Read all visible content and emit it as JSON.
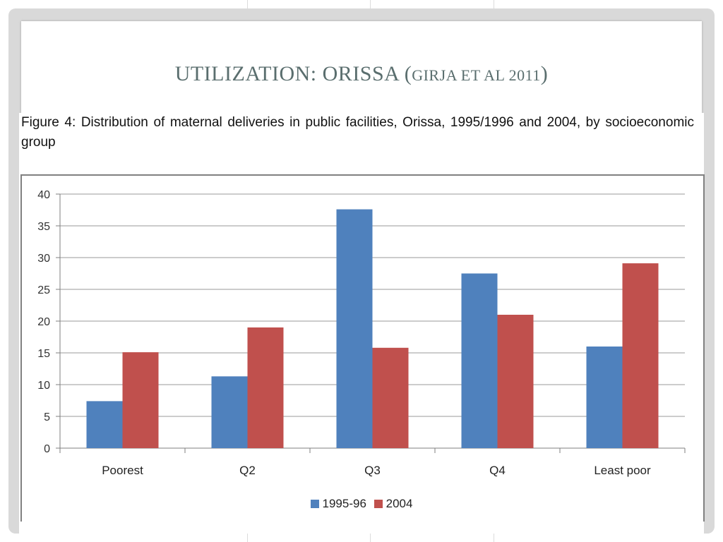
{
  "slide": {
    "title_main": "UTILIZATION: ORISSA (",
    "title_small": "GIRJA ET AL 2011",
    "title_end": ")"
  },
  "caption": "Figure 4: Distribution of maternal deliveries in public facilities, Orissa, 1995/1996 and 2004, by socioeconomic group",
  "colors": {
    "series_1": "#4f81bd",
    "series_2": "#c0504d",
    "grid": "#9a9a9a"
  },
  "chart_data": {
    "type": "bar",
    "categories": [
      "Poorest",
      "Q2",
      "Q3",
      "Q4",
      "Least poor"
    ],
    "series": [
      {
        "name": "1995-96",
        "values": [
          7.4,
          11.3,
          37.6,
          27.5,
          16.0
        ]
      },
      {
        "name": "2004",
        "values": [
          15.1,
          19.0,
          15.8,
          21.0,
          29.1
        ]
      }
    ],
    "ylim": [
      0,
      40
    ],
    "yticks": [
      0,
      5,
      10,
      15,
      20,
      25,
      30,
      35,
      40
    ],
    "grid": true,
    "legend_position": "bottom"
  }
}
